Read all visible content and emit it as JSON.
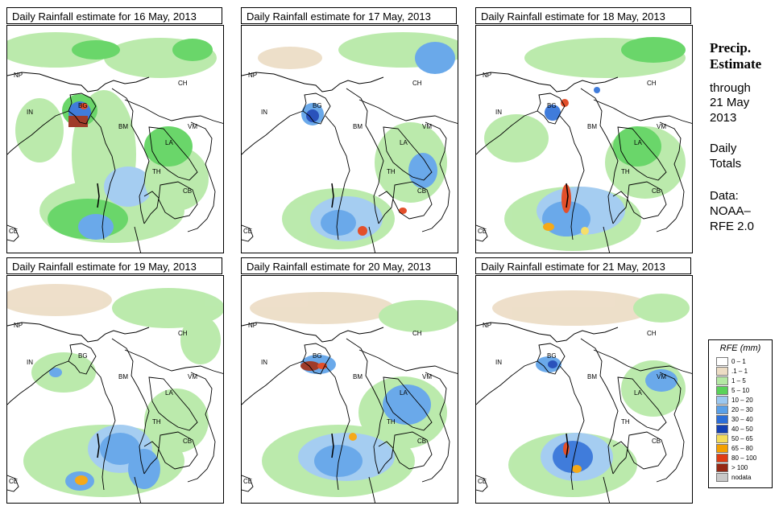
{
  "panels": [
    {
      "title": "Daily Rainfall estimate for  16 May, 2013"
    },
    {
      "title": "Daily Rainfall estimate for  17 May, 2013"
    },
    {
      "title": "Daily Rainfall estimate for  18 May, 2013"
    },
    {
      "title": "Daily Rainfall estimate for  19 May, 2013"
    },
    {
      "title": "Daily Rainfall estimate for  20 May, 2013"
    },
    {
      "title": "Daily Rainfall estimate for  21 May, 2013"
    }
  ],
  "map_labels": {
    "np": "NP",
    "ch": "CH",
    "in": "IN",
    "bg": "BG",
    "bm": "BM",
    "vm": "VM",
    "la": "LA",
    "th": "TH",
    "cb": "CB",
    "ce": "CE"
  },
  "sidebar": {
    "title_line1": "Precip.",
    "title_line2": "Estimate",
    "through": "through",
    "date_line1": "21 May",
    "date_line2": "2013",
    "type_line1": "Daily",
    "type_line2": "Totals",
    "data_line1": "Data:",
    "data_line2": "NOAA–",
    "data_line3": "RFE 2.0"
  },
  "legend": {
    "title": "RFE (mm)",
    "items": [
      {
        "label": "0 – 1",
        "color": "#ffffff"
      },
      {
        "label": ".1 – 1",
        "color": "#ecdcc4"
      },
      {
        "label": "1 – 5",
        "color": "#b4e8a4"
      },
      {
        "label": "5 – 10",
        "color": "#5ad25a"
      },
      {
        "label": "10 – 20",
        "color": "#9cc8f0"
      },
      {
        "label": "20 – 30",
        "color": "#5aa0e8"
      },
      {
        "label": "30 – 40",
        "color": "#2c6ed8"
      },
      {
        "label": "40 – 50",
        "color": "#1440b4"
      },
      {
        "label": "50 – 65",
        "color": "#f4dc5a"
      },
      {
        "label": "65 – 80",
        "color": "#f4a000"
      },
      {
        "label": "80 – 100",
        "color": "#e03c14"
      },
      {
        "label": "> 100",
        "color": "#962814"
      },
      {
        "label": "nodata",
        "color": "#c8c8c8"
      }
    ]
  }
}
